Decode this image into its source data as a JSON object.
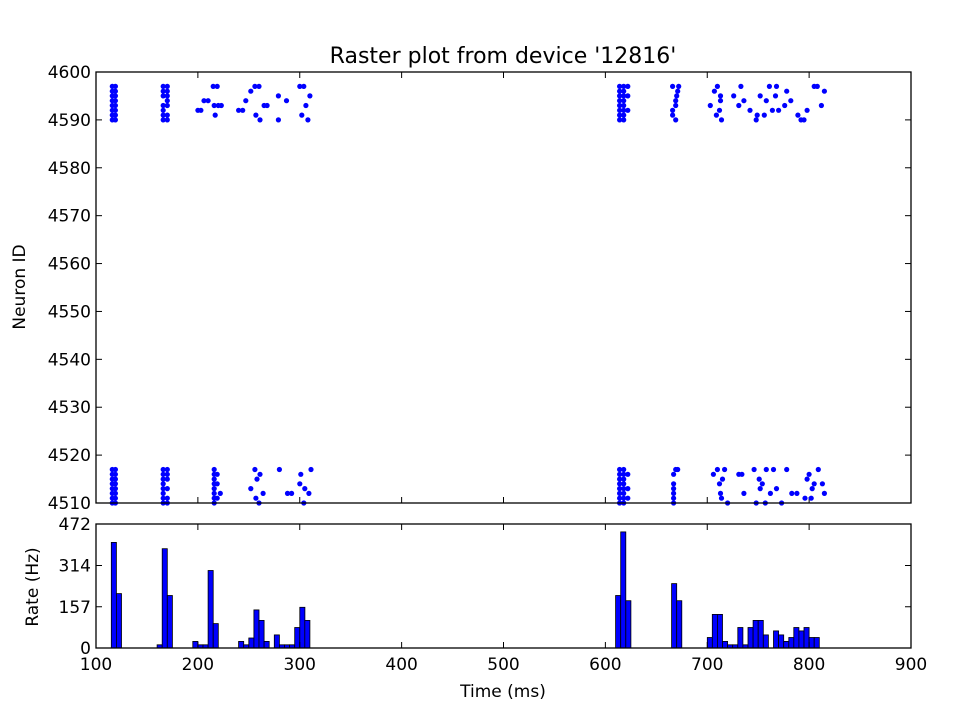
{
  "chart_data": [
    {
      "type": "scatter",
      "title": "Raster plot from device '12816'",
      "xlabel": "",
      "ylabel": "Neuron ID",
      "xlim": [
        100,
        900
      ],
      "ylim": [
        4510,
        4600
      ],
      "y_ticks": [
        "4510",
        "4520",
        "4530",
        "4540",
        "4550",
        "4560",
        "4570",
        "4580",
        "4590",
        "4600"
      ],
      "marker_color": "#0000ff",
      "grid": false,
      "series": [
        {
          "points": [
            [
              116,
              4590
            ],
            [
              116,
              4591
            ],
            [
              116,
              4592
            ],
            [
              116,
              4593
            ],
            [
              116,
              4594
            ],
            [
              116,
              4595
            ],
            [
              116,
              4596
            ],
            [
              116,
              4597
            ],
            [
              119,
              4590
            ],
            [
              119,
              4591
            ],
            [
              119,
              4592
            ],
            [
              119,
              4593
            ],
            [
              119,
              4594
            ],
            [
              119,
              4595
            ],
            [
              119,
              4596
            ],
            [
              119,
              4597
            ],
            [
              166,
              4590
            ],
            [
              166,
              4591
            ],
            [
              166,
              4592
            ],
            [
              166,
              4593
            ],
            [
              166,
              4595
            ],
            [
              166,
              4596
            ],
            [
              166,
              4597
            ],
            [
              170,
              4590
            ],
            [
              170,
              4591
            ],
            [
              170,
              4593
            ],
            [
              170,
              4594
            ],
            [
              170,
              4595
            ],
            [
              170,
              4596
            ],
            [
              170,
              4597
            ],
            [
              200,
              4592
            ],
            [
              203,
              4592
            ],
            [
              206,
              4594
            ],
            [
              210,
              4594
            ],
            [
              215,
              4597
            ],
            [
              216,
              4593
            ],
            [
              217,
              4591
            ],
            [
              219,
              4597
            ],
            [
              220,
              4593
            ],
            [
              223,
              4593
            ],
            [
              240,
              4592
            ],
            [
              244,
              4592
            ],
            [
              247,
              4594
            ],
            [
              252,
              4596
            ],
            [
              256,
              4597
            ],
            [
              257,
              4591
            ],
            [
              260,
              4597
            ],
            [
              261,
              4590
            ],
            [
              265,
              4593
            ],
            [
              268,
              4593
            ],
            [
              279,
              4590
            ],
            [
              279,
              4595
            ],
            [
              287,
              4594
            ],
            [
              300,
              4597
            ],
            [
              302,
              4591
            ],
            [
              304,
              4597
            ],
            [
              306,
              4593
            ],
            [
              308,
              4590
            ],
            [
              310,
              4595
            ],
            [
              614,
              4590
            ],
            [
              614,
              4591
            ],
            [
              614,
              4592
            ],
            [
              614,
              4593
            ],
            [
              614,
              4594
            ],
            [
              614,
              4595
            ],
            [
              614,
              4596
            ],
            [
              614,
              4597
            ],
            [
              618,
              4590
            ],
            [
              618,
              4591
            ],
            [
              618,
              4592
            ],
            [
              618,
              4593
            ],
            [
              618,
              4594
            ],
            [
              618,
              4595
            ],
            [
              618,
              4596
            ],
            [
              618,
              4597
            ],
            [
              622,
              4592
            ],
            [
              622,
              4595
            ],
            [
              622,
              4597
            ],
            [
              666,
              4591
            ],
            [
              666,
              4592
            ],
            [
              666,
              4597
            ],
            [
              669,
              4590
            ],
            [
              669,
              4593
            ],
            [
              669,
              4594
            ],
            [
              670,
              4595
            ],
            [
              671,
              4596
            ],
            [
              672,
              4597
            ],
            [
              703,
              4593
            ],
            [
              707,
              4596
            ],
            [
              709,
              4591
            ],
            [
              710,
              4597
            ],
            [
              712,
              4592
            ],
            [
              713,
              4594
            ],
            [
              713,
              4595
            ],
            [
              714,
              4590
            ],
            [
              726,
              4595
            ],
            [
              731,
              4593
            ],
            [
              733,
              4597
            ],
            [
              736,
              4594
            ],
            [
              742,
              4592
            ],
            [
              748,
              4590
            ],
            [
              749,
              4591
            ],
            [
              752,
              4595
            ],
            [
              756,
              4591
            ],
            [
              758,
              4594
            ],
            [
              761,
              4597
            ],
            [
              764,
              4592
            ],
            [
              767,
              4595
            ],
            [
              768,
              4597
            ],
            [
              770,
              4592
            ],
            [
              776,
              4593
            ],
            [
              778,
              4596
            ],
            [
              782,
              4594
            ],
            [
              789,
              4591
            ],
            [
              792,
              4590
            ],
            [
              795,
              4590
            ],
            [
              798,
              4592
            ],
            [
              805,
              4597
            ],
            [
              808,
              4597
            ],
            [
              812,
              4593
            ],
            [
              815,
              4596
            ]
          ]
        },
        {
          "points": [
            [
              116,
              4510
            ],
            [
              116,
              4511
            ],
            [
              116,
              4512
            ],
            [
              116,
              4513
            ],
            [
              116,
              4514
            ],
            [
              116,
              4515
            ],
            [
              116,
              4516
            ],
            [
              116,
              4517
            ],
            [
              119,
              4510
            ],
            [
              119,
              4511
            ],
            [
              119,
              4512
            ],
            [
              119,
              4513
            ],
            [
              119,
              4514
            ],
            [
              119,
              4515
            ],
            [
              119,
              4516
            ],
            [
              119,
              4517
            ],
            [
              166,
              4510
            ],
            [
              166,
              4511
            ],
            [
              166,
              4512
            ],
            [
              166,
              4513
            ],
            [
              166,
              4514
            ],
            [
              166,
              4515
            ],
            [
              166,
              4516
            ],
            [
              166,
              4517
            ],
            [
              170,
              4510
            ],
            [
              170,
              4511
            ],
            [
              170,
              4513
            ],
            [
              170,
              4515
            ],
            [
              170,
              4516
            ],
            [
              170,
              4517
            ],
            [
              216,
              4510
            ],
            [
              216,
              4511
            ],
            [
              216,
              4512
            ],
            [
              216,
              4513
            ],
            [
              216,
              4514
            ],
            [
              216,
              4515
            ],
            [
              216,
              4516
            ],
            [
              216,
              4517
            ],
            [
              219,
              4511
            ],
            [
              219,
              4514
            ],
            [
              219,
              4516
            ],
            [
              222,
              4512
            ],
            [
              252,
              4513
            ],
            [
              256,
              4517
            ],
            [
              257,
              4511
            ],
            [
              258,
              4515
            ],
            [
              260,
              4510
            ],
            [
              261,
              4516
            ],
            [
              264,
              4512
            ],
            [
              280,
              4517
            ],
            [
              288,
              4512
            ],
            [
              292,
              4512
            ],
            [
              300,
              4514
            ],
            [
              301,
              4516
            ],
            [
              304,
              4510
            ],
            [
              305,
              4513
            ],
            [
              309,
              4512
            ],
            [
              311,
              4517
            ],
            [
              614,
              4510
            ],
            [
              614,
              4511
            ],
            [
              614,
              4512
            ],
            [
              614,
              4513
            ],
            [
              614,
              4514
            ],
            [
              614,
              4515
            ],
            [
              614,
              4516
            ],
            [
              614,
              4517
            ],
            [
              618,
              4510
            ],
            [
              618,
              4511
            ],
            [
              618,
              4512
            ],
            [
              618,
              4513
            ],
            [
              618,
              4514
            ],
            [
              618,
              4515
            ],
            [
              618,
              4516
            ],
            [
              618,
              4517
            ],
            [
              622,
              4511
            ],
            [
              622,
              4513
            ],
            [
              622,
              4516
            ],
            [
              667,
              4510
            ],
            [
              667,
              4511
            ],
            [
              667,
              4512
            ],
            [
              667,
              4513
            ],
            [
              667,
              4514
            ],
            [
              667,
              4516
            ],
            [
              669,
              4517
            ],
            [
              671,
              4517
            ],
            [
              706,
              4516
            ],
            [
              710,
              4517
            ],
            [
              712,
              4514
            ],
            [
              713,
              4512
            ],
            [
              714,
              4511
            ],
            [
              715,
              4515
            ],
            [
              717,
              4517
            ],
            [
              720,
              4510
            ],
            [
              731,
              4516
            ],
            [
              734,
              4516
            ],
            [
              736,
              4512
            ],
            [
              746,
              4517
            ],
            [
              748,
              4510
            ],
            [
              751,
              4515
            ],
            [
              752,
              4513
            ],
            [
              754,
              4514
            ],
            [
              757,
              4510
            ],
            [
              758,
              4517
            ],
            [
              762,
              4512
            ],
            [
              765,
              4517
            ],
            [
              768,
              4513
            ],
            [
              773,
              4510
            ],
            [
              778,
              4517
            ],
            [
              783,
              4512
            ],
            [
              788,
              4512
            ],
            [
              796,
              4511
            ],
            [
              798,
              4515
            ],
            [
              800,
              4516
            ],
            [
              802,
              4511
            ],
            [
              803,
              4513
            ],
            [
              805,
              4514
            ],
            [
              809,
              4517
            ],
            [
              813,
              4514
            ],
            [
              815,
              4512
            ]
          ]
        }
      ]
    },
    {
      "type": "bar",
      "title": "",
      "xlabel": "Time (ms)",
      "ylabel": "Rate (Hz)",
      "xlim": [
        100,
        900
      ],
      "ylim": [
        0,
        472
      ],
      "x_ticks": [
        "100",
        "200",
        "300",
        "400",
        "500",
        "600",
        "700",
        "800",
        "900"
      ],
      "y_ticks": [
        "0",
        "157",
        "314",
        "472"
      ],
      "bar_color": "#0000ff",
      "bin_width": 5,
      "bins": [
        [
          115,
          402
        ],
        [
          120,
          207
        ],
        [
          160,
          12
        ],
        [
          165,
          378
        ],
        [
          170,
          200
        ],
        [
          195,
          25
        ],
        [
          200,
          12
        ],
        [
          205,
          12
        ],
        [
          210,
          295
        ],
        [
          215,
          93
        ],
        [
          240,
          25
        ],
        [
          245,
          12
        ],
        [
          250,
          38
        ],
        [
          255,
          145
        ],
        [
          260,
          105
        ],
        [
          265,
          25
        ],
        [
          275,
          50
        ],
        [
          280,
          12
        ],
        [
          285,
          12
        ],
        [
          290,
          12
        ],
        [
          295,
          78
        ],
        [
          300,
          155
        ],
        [
          305,
          105
        ],
        [
          610,
          200
        ],
        [
          615,
          442
        ],
        [
          620,
          180
        ],
        [
          665,
          245
        ],
        [
          670,
          180
        ],
        [
          700,
          40
        ],
        [
          705,
          128
        ],
        [
          710,
          128
        ],
        [
          715,
          25
        ],
        [
          720,
          12
        ],
        [
          725,
          12
        ],
        [
          730,
          78
        ],
        [
          735,
          12
        ],
        [
          740,
          78
        ],
        [
          745,
          105
        ],
        [
          750,
          105
        ],
        [
          755,
          50
        ],
        [
          765,
          65
        ],
        [
          770,
          50
        ],
        [
          775,
          25
        ],
        [
          780,
          40
        ],
        [
          785,
          78
        ],
        [
          790,
          65
        ],
        [
          795,
          78
        ],
        [
          800,
          40
        ],
        [
          805,
          40
        ]
      ]
    }
  ]
}
